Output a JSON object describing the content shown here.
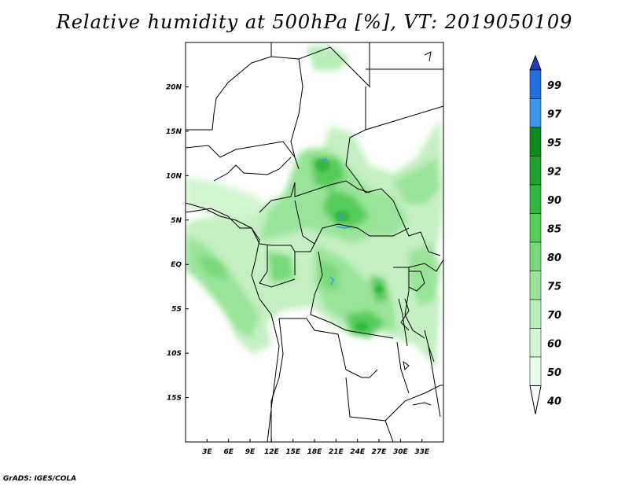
{
  "title": "Relative humidity at 500hPa [%], VT: 2019050109",
  "footer": "GrADS: IGES/COLA",
  "map": {
    "lon_range": [
      0,
      36
    ],
    "lat_range": [
      -20,
      25
    ],
    "x_tick_labels": [
      "3E",
      "6E",
      "9E",
      "12E",
      "15E",
      "18E",
      "21E",
      "24E",
      "27E",
      "30E",
      "33E"
    ],
    "y_tick_labels": [
      "20N",
      "15N",
      "10N",
      "5N",
      "EQ",
      "5S",
      "10S",
      "15S"
    ],
    "variable": "relative humidity",
    "level": "500hPa",
    "units": "%",
    "valid_time": "2019050109"
  },
  "colorbar": {
    "labels": [
      "99",
      "97",
      "95",
      "92",
      "90",
      "85",
      "80",
      "75",
      "70",
      "60",
      "50",
      "40"
    ],
    "colors": [
      "#1e3fbf",
      "#1f6fdc",
      "#3f95ea",
      "#0c8a1c",
      "#1ea02c",
      "#32b83e",
      "#56cc5a",
      "#78d97a",
      "#9ae49a",
      "#b9eeb8",
      "#d4f5d2",
      "#ebfbea",
      "#ffffff"
    ]
  }
}
